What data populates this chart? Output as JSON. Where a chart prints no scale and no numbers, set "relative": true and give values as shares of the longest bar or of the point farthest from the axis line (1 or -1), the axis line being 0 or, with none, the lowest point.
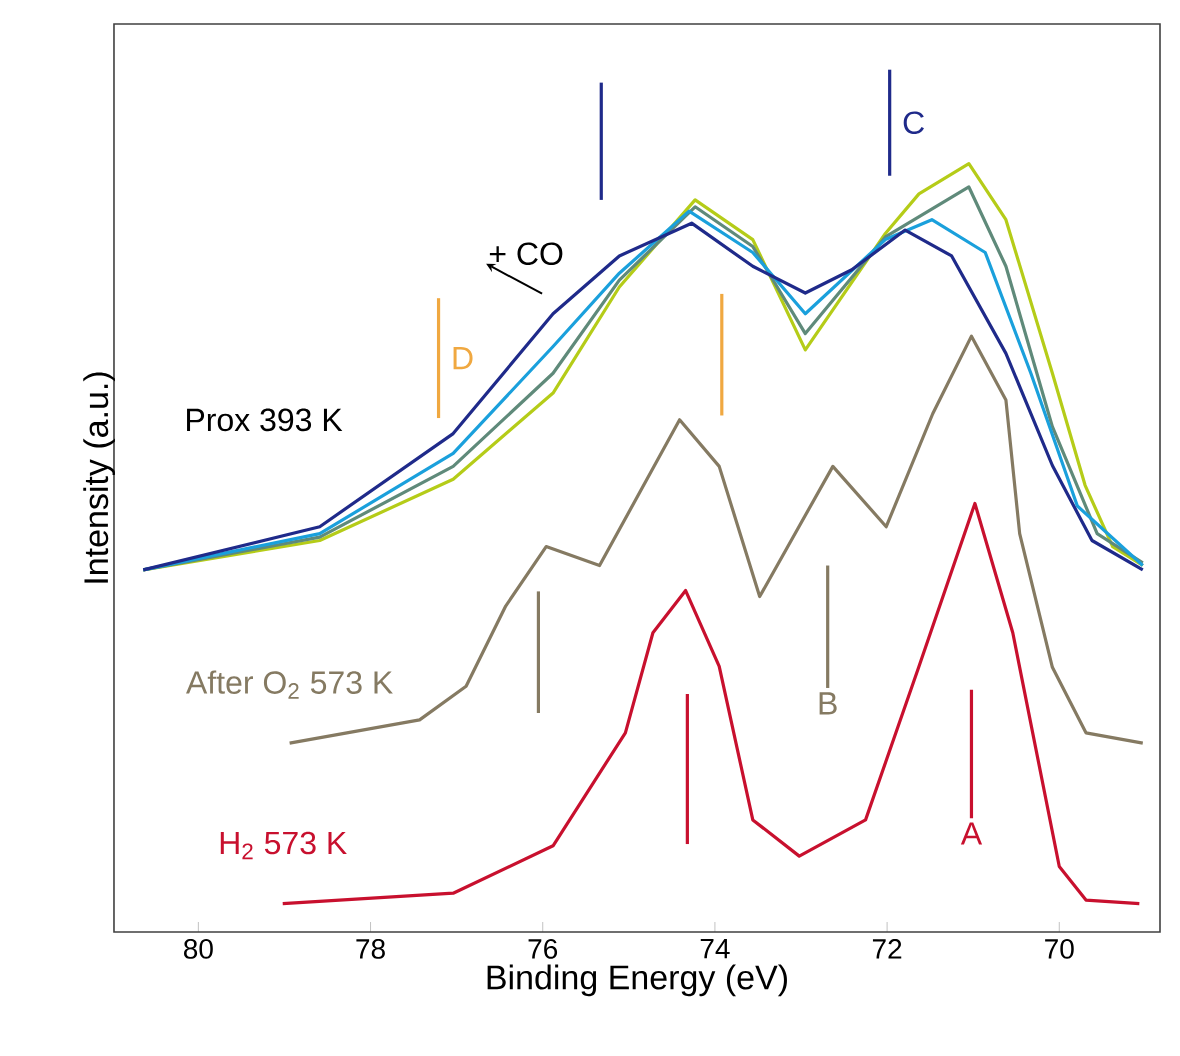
{
  "chart_data": {
    "type": "line",
    "relative": true,
    "xlabel": "Binding Energy (eV)",
    "ylabel": "Intensity (a.u.)",
    "xlim": [
      80.98,
      68.83
    ],
    "xticks": [
      80,
      78,
      76,
      74,
      72,
      70
    ],
    "series": [
      {
        "color": "#b5cc18",
        "x": [
          80.64,
          78.59,
          77.04,
          75.88,
          75.11,
          74.23,
          73.56,
          72.95,
          72.02,
          71.63,
          71.05,
          70.62,
          70.08,
          69.7,
          69.38,
          69.03
        ],
        "values": [
          0.42,
          0.454,
          0.525,
          0.625,
          0.748,
          0.849,
          0.803,
          0.675,
          0.81,
          0.856,
          0.891,
          0.826,
          0.648,
          0.518,
          0.447,
          0.425
        ]
      },
      {
        "color": "#5f8a7a",
        "x": [
          80.64,
          78.59,
          77.04,
          75.88,
          75.11,
          74.23,
          73.56,
          72.95,
          72.02,
          71.05,
          70.62,
          70.08,
          69.56,
          69.03
        ],
        "values": [
          0.42,
          0.458,
          0.54,
          0.648,
          0.756,
          0.841,
          0.795,
          0.694,
          0.806,
          0.864,
          0.772,
          0.586,
          0.462,
          0.428
        ]
      },
      {
        "color": "#1aa0dc",
        "x": [
          80.64,
          78.59,
          77.04,
          75.88,
          75.11,
          74.3,
          73.56,
          72.95,
          72.02,
          71.48,
          70.86,
          70.33,
          69.79,
          69.03
        ],
        "values": [
          0.42,
          0.462,
          0.555,
          0.679,
          0.764,
          0.836,
          0.788,
          0.717,
          0.803,
          0.826,
          0.788,
          0.648,
          0.494,
          0.425
        ]
      },
      {
        "color": "#1f2a8a",
        "x": [
          80.64,
          78.59,
          77.04,
          75.88,
          75.11,
          74.27,
          73.56,
          72.95,
          72.41,
          71.79,
          71.25,
          70.62,
          70.08,
          69.62,
          69.03
        ],
        "values": [
          0.42,
          0.47,
          0.578,
          0.717,
          0.784,
          0.822,
          0.772,
          0.741,
          0.768,
          0.814,
          0.784,
          0.671,
          0.541,
          0.454,
          0.42
        ]
      },
      {
        "name": "After O$_{2}$ 573 K",
        "color": "#857a62",
        "x": [
          78.94,
          77.43,
          76.89,
          76.43,
          75.96,
          75.34,
          74.41,
          73.95,
          73.48,
          72.63,
          72.01,
          71.47,
          71.02,
          70.62,
          70.46,
          70.08,
          69.69,
          69.03
        ],
        "values": [
          0.219,
          0.246,
          0.285,
          0.378,
          0.447,
          0.425,
          0.594,
          0.54,
          0.389,
          0.54,
          0.47,
          0.601,
          0.691,
          0.617,
          0.462,
          0.307,
          0.231,
          0.219
        ]
      },
      {
        "name": "H$_{2}$ 573 K",
        "color": "#c8102e",
        "x": [
          79.02,
          77.04,
          75.88,
          75.04,
          74.72,
          74.34,
          73.95,
          73.56,
          73.02,
          72.25,
          71.63,
          70.98,
          70.54,
          70.0,
          69.69,
          69.07
        ],
        "values": [
          0.033,
          0.045,
          0.1,
          0.231,
          0.347,
          0.396,
          0.308,
          0.13,
          0.088,
          0.13,
          0.308,
          0.497,
          0.347,
          0.076,
          0.037,
          0.033
        ]
      },
      {
        "color": "#1f2a8a",
        "x": [
          75.32,
          75.32
        ],
        "values": [
          0.985,
          0.849
        ]
      },
      {
        "name": "C",
        "color": "#1f2a8a",
        "x": [
          71.97,
          71.97
        ],
        "values": [
          1.0,
          0.877
        ]
      },
      {
        "name": "D",
        "color": "#f0a840",
        "x": [
          77.21,
          77.21
        ],
        "values": [
          0.735,
          0.596
        ]
      },
      {
        "color": "#f0a840",
        "x": [
          73.92,
          73.92
        ],
        "values": [
          0.74,
          0.599
        ]
      },
      {
        "color": "#857a62",
        "x": [
          76.05,
          76.05
        ],
        "values": [
          0.395,
          0.254
        ]
      },
      {
        "name": "B",
        "color": "#857a62",
        "x": [
          72.69,
          72.69
        ],
        "values": [
          0.425,
          0.283
        ]
      },
      {
        "color": "#c8102e",
        "x": [
          74.32,
          74.32
        ],
        "values": [
          0.276,
          0.102
        ]
      },
      {
        "name": "A",
        "color": "#c8102e",
        "x": [
          71.02,
          71.02
        ],
        "values": [
          0.281,
          0.132
        ]
      }
    ],
    "annotations": [
      "Prox 393 K",
      "+ CO"
    ]
  }
}
